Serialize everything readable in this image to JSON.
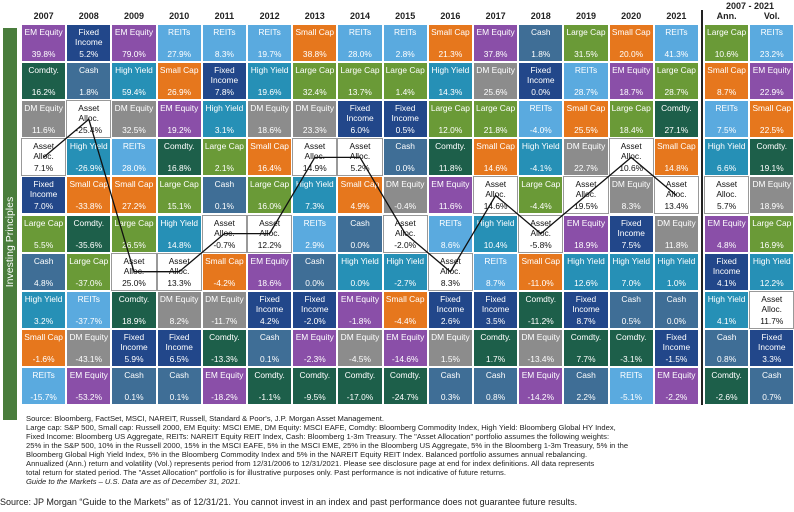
{
  "sidebar_label": "Investing Principles",
  "span_header": "2007 - 2021",
  "colors": {
    "EM Equity": "#8a4fa8",
    "Fixed Income": "#22478a",
    "REITs": "#5aaadf",
    "Small Cap": "#e6771d",
    "Cash": "#3f6e96",
    "Large Cap": "#6a9a37",
    "DM Equity": "#8c8c8c",
    "Comdty.": "#1d5f4a",
    "High Yield": "#2690b6",
    "Asset Alloc.": "#ffffff"
  },
  "footnote_lines": [
    "Source: Bloomberg, FactSet, MSCI, NAREIT, Russell, Standard & Poor's, J.P. Morgan Asset Management.",
    "Large cap: S&P 500, Small cap: Russell 2000, EM Equity: MSCI EME, DM Equity: MSCI EAFE, Comdty: Bloomberg Commodity Index, High Yield: Bloomberg Global HY Index,",
    "Fixed Income: Bloomberg US Aggregate, REITs: NAREIT Equity REIT Index, Cash: Bloomberg 1-3m Treasury. The \"Asset Allocation\" portfolio assumes the following weights:",
    "25% in the S&P 500, 10% in the Russell 2000, 15% in the MSCI EAFE, 5% in the MSCI EME, 25% in the Bloomberg US Aggregate, 5% in the Bloomberg 1-3m Treasury, 5% in the",
    "Bloomberg Global High Yield Index, 5% in the Bloomberg Commodity Index and 5% in the NAREIT Equity REIT Index. Balanced portfolio assumes annual rebalancing.",
    "Annualized (Ann.) return and volatility (Vol.) represents period from 12/31/2006 to 12/31/2021. Please see disclosure page at end for index definitions. All data represents",
    "total return for stated period. The \"Asset Allocation\" portfolio is for illustrative purposes only. Past performance is not indicative of future returns.",
    "Guide to the Markets – U.S. Data are as of December 31, 2021."
  ],
  "source_text": "Source: JP Morgan “Guide to the Markets” as of 12/31/21. You cannot invest in an index and past performance does not guarantee future results.",
  "chart_data": {
    "type": "table",
    "columns": [
      "2007",
      "2008",
      "2009",
      "2010",
      "2011",
      "2012",
      "2013",
      "2014",
      "2015",
      "2016",
      "2017",
      "2018",
      "2019",
      "2020",
      "2021",
      "Ann.",
      "Vol."
    ],
    "rows": [
      [
        [
          "EM Equity",
          "39.8%"
        ],
        [
          "Fixed Income",
          "5.2%"
        ],
        [
          "EM Equity",
          "79.0%"
        ],
        [
          "REITs",
          "27.9%"
        ],
        [
          "REITs",
          "8.3%"
        ],
        [
          "REITs",
          "19.7%"
        ],
        [
          "Small Cap",
          "38.8%"
        ],
        [
          "REITs",
          "28.0%"
        ],
        [
          "REITs",
          "2.8%"
        ],
        [
          "Small Cap",
          "21.3%"
        ],
        [
          "EM Equity",
          "37.8%"
        ],
        [
          "Cash",
          "1.8%"
        ],
        [
          "Large Cap",
          "31.5%"
        ],
        [
          "Small Cap",
          "20.0%"
        ],
        [
          "REITs",
          "41.3%"
        ],
        [
          "Large Cap",
          "10.6%"
        ],
        [
          "REITs",
          "23.2%"
        ]
      ],
      [
        [
          "Comdty.",
          "16.2%"
        ],
        [
          "Cash",
          "1.8%"
        ],
        [
          "High Yield",
          "59.4%"
        ],
        [
          "Small Cap",
          "26.9%"
        ],
        [
          "Fixed Income",
          "7.8%"
        ],
        [
          "High Yield",
          "19.6%"
        ],
        [
          "Large Cap",
          "32.4%"
        ],
        [
          "Large Cap",
          "13.7%"
        ],
        [
          "Large Cap",
          "1.4%"
        ],
        [
          "High Yield",
          "14.3%"
        ],
        [
          "DM Equity",
          "25.6%"
        ],
        [
          "Fixed Income",
          "0.0%"
        ],
        [
          "REITs",
          "28.7%"
        ],
        [
          "EM Equity",
          "18.7%"
        ],
        [
          "Large Cap",
          "28.7%"
        ],
        [
          "Small Cap",
          "8.7%"
        ],
        [
          "EM Equity",
          "22.9%"
        ]
      ],
      [
        [
          "DM Equity",
          "11.6%"
        ],
        [
          "Asset Alloc.",
          "-25.4%"
        ],
        [
          "DM Equity",
          "32.5%"
        ],
        [
          "EM Equity",
          "19.2%"
        ],
        [
          "High Yield",
          "3.1%"
        ],
        [
          "DM Equity",
          "18.6%"
        ],
        [
          "DM Equity",
          "23.3%"
        ],
        [
          "Fixed Income",
          "6.0%"
        ],
        [
          "Fixed Income",
          "0.5%"
        ],
        [
          "Large Cap",
          "12.0%"
        ],
        [
          "Large Cap",
          "21.8%"
        ],
        [
          "REITs",
          "-4.0%"
        ],
        [
          "Small Cap",
          "25.5%"
        ],
        [
          "Large Cap",
          "18.4%"
        ],
        [
          "Comdty.",
          "27.1%"
        ],
        [
          "REITs",
          "7.5%"
        ],
        [
          "Small Cap",
          "22.5%"
        ]
      ],
      [
        [
          "Asset Alloc.",
          "7.1%"
        ],
        [
          "High Yield",
          "-26.9%"
        ],
        [
          "REITs",
          "28.0%"
        ],
        [
          "Comdty.",
          "16.8%"
        ],
        [
          "Large Cap",
          "2.1%"
        ],
        [
          "Small Cap",
          "16.4%"
        ],
        [
          "Asset Alloc.",
          "14.9%"
        ],
        [
          "Asset Alloc.",
          "5.2%"
        ],
        [
          "Cash",
          "0.0%"
        ],
        [
          "Comdty.",
          "11.8%"
        ],
        [
          "Small Cap",
          "14.6%"
        ],
        [
          "High Yield",
          "-4.1%"
        ],
        [
          "DM Equity",
          "22.7%"
        ],
        [
          "Asset Alloc.",
          "10.6%"
        ],
        [
          "Small Cap",
          "14.8%"
        ],
        [
          "High Yield",
          "6.6%"
        ],
        [
          "Comdty.",
          "19.1%"
        ]
      ],
      [
        [
          "Fixed Income",
          "7.0%"
        ],
        [
          "Small Cap",
          "-33.8%"
        ],
        [
          "Small Cap",
          "27.2%"
        ],
        [
          "Large Cap",
          "15.1%"
        ],
        [
          "Cash",
          "0.1%"
        ],
        [
          "Large Cap",
          "16.0%"
        ],
        [
          "High Yield",
          "7.3%"
        ],
        [
          "Small Cap",
          "4.9%"
        ],
        [
          "DM Equity",
          "-0.4%"
        ],
        [
          "EM Equity",
          "11.6%"
        ],
        [
          "Asset Alloc.",
          "14.6%"
        ],
        [
          "Large Cap",
          "-4.4%"
        ],
        [
          "Asset Alloc.",
          "19.5%"
        ],
        [
          "DM Equity",
          "8.3%"
        ],
        [
          "Asset Alloc.",
          "13.4%"
        ],
        [
          "Asset Alloc.",
          "5.7%"
        ],
        [
          "DM Equity",
          "18.9%"
        ]
      ],
      [
        [
          "Large Cap",
          "5.5%"
        ],
        [
          "Comdty.",
          "-35.6%"
        ],
        [
          "Large Cap",
          "26.5%"
        ],
        [
          "High Yield",
          "14.8%"
        ],
        [
          "Asset Alloc.",
          "-0.7%"
        ],
        [
          "Asset Alloc.",
          "12.2%"
        ],
        [
          "REITs",
          "2.9%"
        ],
        [
          "Cash",
          "0.0%"
        ],
        [
          "Asset Alloc.",
          "-2.0%"
        ],
        [
          "REITs",
          "8.6%"
        ],
        [
          "High Yield",
          "10.4%"
        ],
        [
          "Asset Alloc.",
          "-5.8%"
        ],
        [
          "EM Equity",
          "18.9%"
        ],
        [
          "Fixed Income",
          "7.5%"
        ],
        [
          "DM Equity",
          "11.8%"
        ],
        [
          "EM Equity",
          "4.8%"
        ],
        [
          "Large Cap",
          "16.9%"
        ]
      ],
      [
        [
          "Cash",
          "4.8%"
        ],
        [
          "Large Cap",
          "-37.0%"
        ],
        [
          "Asset Alloc.",
          "25.0%"
        ],
        [
          "Asset Alloc.",
          "13.3%"
        ],
        [
          "Small Cap",
          "-4.2%"
        ],
        [
          "EM Equity",
          "18.6%"
        ],
        [
          "Cash",
          "0.0%"
        ],
        [
          "High Yield",
          "0.0%"
        ],
        [
          "High Yield",
          "-2.7%"
        ],
        [
          "Asset Alloc.",
          "8.3%"
        ],
        [
          "REITs",
          "8.7%"
        ],
        [
          "Small Cap",
          "-11.0%"
        ],
        [
          "High Yield",
          "12.6%"
        ],
        [
          "High Yield",
          "7.0%"
        ],
        [
          "High Yield",
          "1.0%"
        ],
        [
          "Fixed Income",
          "4.1%"
        ],
        [
          "High Yield",
          "12.2%"
        ]
      ],
      [
        [
          "High Yield",
          "3.2%"
        ],
        [
          "REITs",
          "-37.7%"
        ],
        [
          "Comdty.",
          "18.9%"
        ],
        [
          "DM Equity",
          "8.2%"
        ],
        [
          "DM Equity",
          "-11.7%"
        ],
        [
          "Fixed Income",
          "4.2%"
        ],
        [
          "Fixed Income",
          "-2.0%"
        ],
        [
          "EM Equity",
          "-1.8%"
        ],
        [
          "Small Cap",
          "-4.4%"
        ],
        [
          "Fixed Income",
          "2.6%"
        ],
        [
          "Fixed Income",
          "3.5%"
        ],
        [
          "Comdty.",
          "-11.2%"
        ],
        [
          "Fixed Income",
          "8.7%"
        ],
        [
          "Cash",
          "0.5%"
        ],
        [
          "Cash",
          "0.0%"
        ],
        [
          "High Yield",
          "4.1%"
        ],
        [
          "Asset Alloc.",
          "11.7%"
        ]
      ],
      [
        [
          "Small Cap",
          "-1.6%"
        ],
        [
          "DM Equity",
          "-43.1%"
        ],
        [
          "Fixed Income",
          "5.9%"
        ],
        [
          "Fixed Income",
          "6.5%"
        ],
        [
          "Comdty.",
          "-13.3%"
        ],
        [
          "Cash",
          "0.1%"
        ],
        [
          "EM Equity",
          "-2.3%"
        ],
        [
          "DM Equity",
          "-4.5%"
        ],
        [
          "EM Equity",
          "-14.6%"
        ],
        [
          "DM Equity",
          "1.5%"
        ],
        [
          "Comdty.",
          "1.7%"
        ],
        [
          "DM Equity",
          "-13.4%"
        ],
        [
          "Comdty.",
          "7.7%"
        ],
        [
          "Comdty.",
          "-3.1%"
        ],
        [
          "Fixed Income",
          "-1.5%"
        ],
        [
          "Cash",
          "0.8%"
        ],
        [
          "Fixed Income",
          "3.3%"
        ]
      ],
      [
        [
          "REITs",
          "-15.7%"
        ],
        [
          "EM Equity",
          "-53.2%"
        ],
        [
          "Cash",
          "0.1%"
        ],
        [
          "Cash",
          "0.1%"
        ],
        [
          "EM Equity",
          "-18.2%"
        ],
        [
          "Comdty.",
          "-1.1%"
        ],
        [
          "Comdty.",
          "-9.5%"
        ],
        [
          "Comdty.",
          "-17.0%"
        ],
        [
          "Comdty.",
          "-24.7%"
        ],
        [
          "Cash",
          "0.3%"
        ],
        [
          "Cash",
          "0.8%"
        ],
        [
          "EM Equity",
          "-14.2%"
        ],
        [
          "Cash",
          "2.2%"
        ],
        [
          "REITs",
          "-5.1%"
        ],
        [
          "EM Equity",
          "-2.2%"
        ],
        [
          "Comdty.",
          "-2.6%"
        ],
        [
          "Cash",
          "0.7%"
        ]
      ]
    ],
    "asset_alloc_path": [
      3,
      2,
      6,
      6,
      5,
      5,
      3,
      3,
      5,
      6,
      4,
      5,
      4,
      3,
      4
    ]
  }
}
